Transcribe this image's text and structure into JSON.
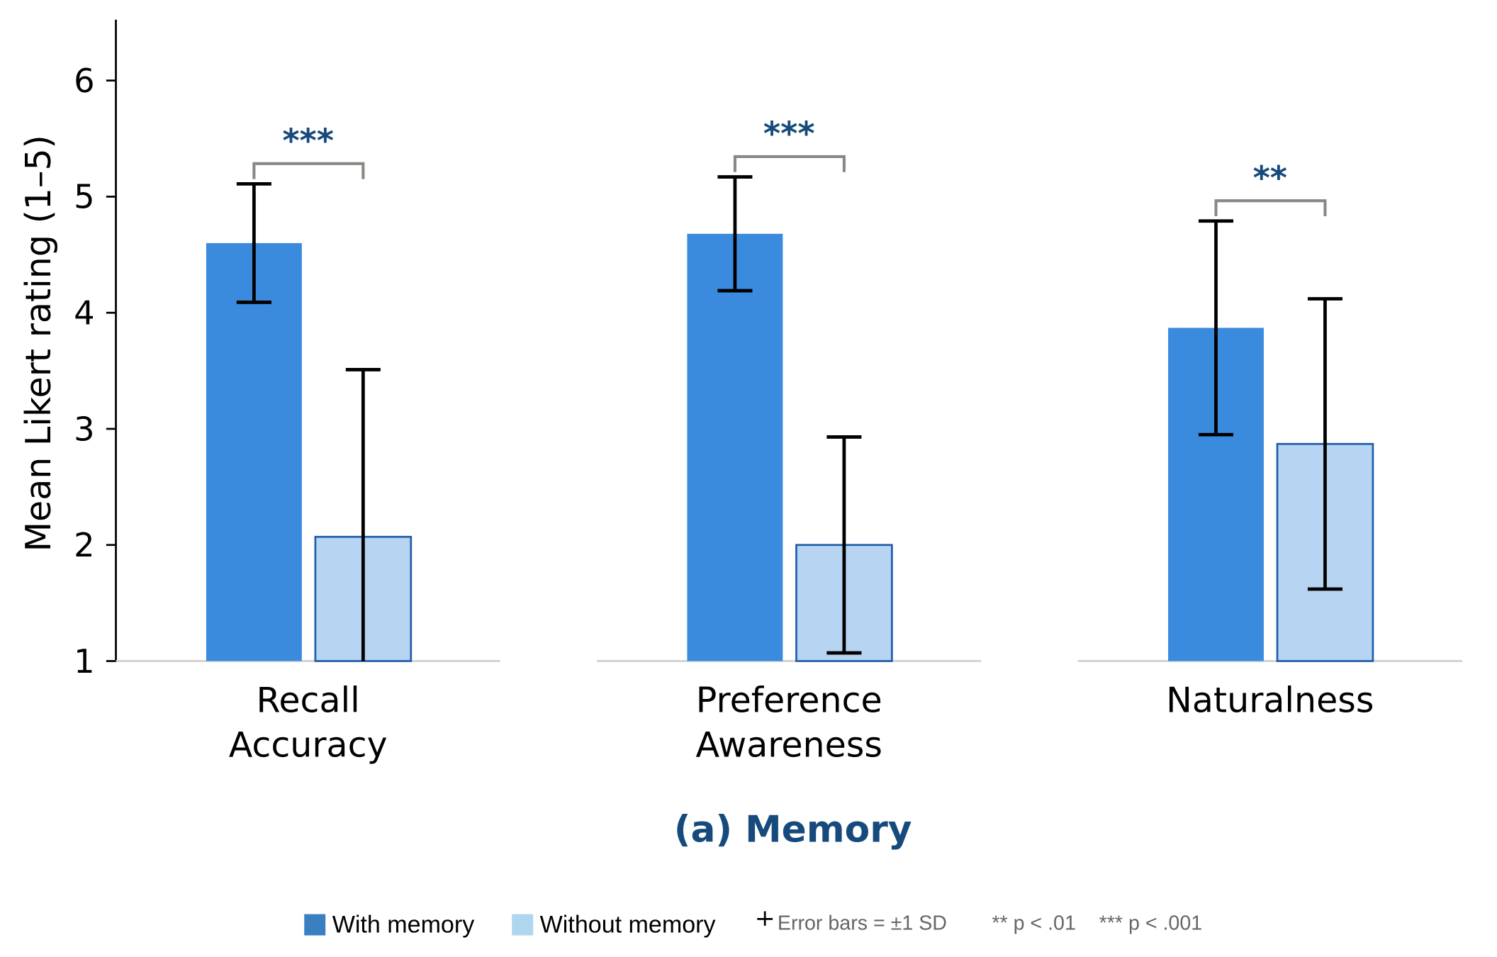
{
  "chart_data": {
    "type": "bar",
    "title": "(a) Memory",
    "xlabel": "",
    "ylabel": "Mean Likert rating (1–5)",
    "ylim": [
      1,
      6.5
    ],
    "yticks": [
      "1",
      "2",
      "3",
      "4",
      "5",
      "6"
    ],
    "grid": false,
    "categories": [
      {
        "line1": "Recall",
        "line2": "Accuracy",
        "significance": "***"
      },
      {
        "line1": "Preference",
        "line2": "Awareness",
        "significance": "***"
      },
      {
        "line1": "Naturalness",
        "line2": "",
        "significance": "**"
      }
    ],
    "series": [
      {
        "name": "With memory",
        "values": [
          4.6,
          4.68,
          3.87
        ],
        "sd": [
          0.51,
          0.49,
          0.92
        ],
        "color": "#3a8ade"
      },
      {
        "name": "Without memory",
        "values": [
          2.07,
          2.0,
          2.87
        ],
        "sd": [
          1.44,
          0.93,
          1.25
        ],
        "color": "#b7d4f2",
        "edge": "#1f5fa8"
      }
    ],
    "legend": {
      "placement": "bottom-center",
      "items": [
        "With memory",
        "Without memory"
      ],
      "swatch_colors": [
        "#3a7fc0",
        "#aed6ef"
      ],
      "error_note": "Error bars = ±1 SD",
      "sig_note_1": "** p < .01",
      "sig_note_2": "*** p < .001"
    },
    "title_color": "#174a7c",
    "star_color": "#174a7c"
  }
}
